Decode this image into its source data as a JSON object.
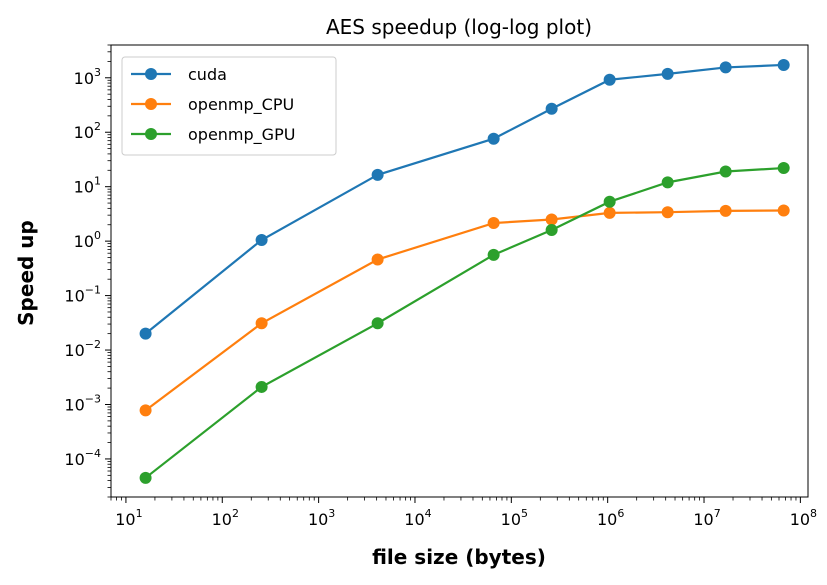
{
  "chart_data": {
    "type": "line",
    "title": "AES speedup (log-log plot)",
    "xlabel": "file size (bytes)",
    "ylabel": "Speed up",
    "xscale": "log",
    "yscale": "log",
    "xlim": [
      7,
      120000000
    ],
    "ylim": [
      2e-05,
      4000
    ],
    "x": [
      16,
      256,
      4096,
      65536,
      262144,
      1048576,
      4194304,
      16777216,
      67108864
    ],
    "x_ticks": [
      {
        "value": 10,
        "base": "10",
        "exp": "1"
      },
      {
        "value": 100,
        "base": "10",
        "exp": "2"
      },
      {
        "value": 1000,
        "base": "10",
        "exp": "3"
      },
      {
        "value": 10000,
        "base": "10",
        "exp": "4"
      },
      {
        "value": 100000,
        "base": "10",
        "exp": "5"
      },
      {
        "value": 1000000,
        "base": "10",
        "exp": "6"
      },
      {
        "value": 10000000,
        "base": "10",
        "exp": "7"
      },
      {
        "value": 100000000,
        "base": "10",
        "exp": "8"
      }
    ],
    "y_ticks": [
      {
        "value": 0.0001,
        "base": "10",
        "exp": "−4"
      },
      {
        "value": 0.001,
        "base": "10",
        "exp": "−3"
      },
      {
        "value": 0.01,
        "base": "10",
        "exp": "−2"
      },
      {
        "value": 0.1,
        "base": "10",
        "exp": "−1"
      },
      {
        "value": 1,
        "base": "10",
        "exp": "0"
      },
      {
        "value": 10,
        "base": "10",
        "exp": "1"
      },
      {
        "value": 100,
        "base": "10",
        "exp": "2"
      },
      {
        "value": 1000,
        "base": "10",
        "exp": "3"
      }
    ],
    "series": [
      {
        "name": "cuda",
        "color": "#1f77b4",
        "values": [
          0.02,
          1.05,
          16.5,
          76,
          270,
          920,
          1180,
          1550,
          1720
        ]
      },
      {
        "name": "openmp_CPU",
        "color": "#ff7f0e",
        "values": [
          0.00078,
          0.031,
          0.46,
          2.15,
          2.5,
          3.3,
          3.4,
          3.6,
          3.65
        ]
      },
      {
        "name": "openmp_GPU",
        "color": "#2ca02c",
        "values": [
          4.5e-05,
          0.0021,
          0.031,
          0.56,
          1.6,
          5.3,
          12,
          19,
          22
        ]
      }
    ],
    "grid": false,
    "legend_position": "top-left"
  }
}
